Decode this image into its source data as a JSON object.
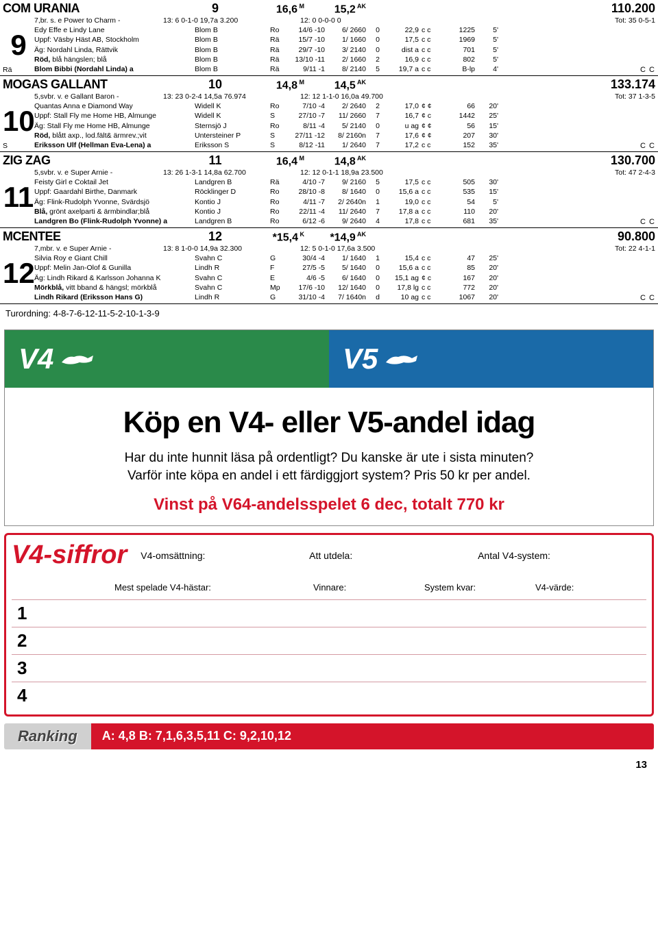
{
  "horses": [
    {
      "name": "COM URANIA",
      "num": "9",
      "stat1": "16,6",
      "sup1": "M",
      "stat2": "15,2",
      "sup2": "AK",
      "record": "110.200",
      "prefix": "Rä",
      "lines": [
        {
          "c1": "7,br. s. e Power to Charm -",
          "c1b": "13:  6  0-1-0  19,7a  3.200",
          "tot": "12:  0  0-0-0   0",
          "totr": "Tot:  35  0-5-1"
        },
        {
          "c1": "Edy Effe e Lindy Lane",
          "c2": "Blom B",
          "c3": "Ro",
          "c4": "14/6 -10",
          "c5": "6/ 2660",
          "c6": "0",
          "c7": "22,9",
          "c8": "c c",
          "c9": "1225",
          "c10": "5'"
        },
        {
          "c1": "Uppf: Väsby Häst AB, Stockholm",
          "c2": "Blom B",
          "c3": "Rä",
          "c4": "15/7 -10",
          "c5": "1/ 1660",
          "c6": "0",
          "c7": "17,5",
          "c8": "c c",
          "c9": "1969",
          "c10": "5'"
        },
        {
          "c1": "Äg: Nordahl Linda, Rättvik",
          "c2": "Blom B",
          "c3": "Rä",
          "c4": "29/7 -10",
          "c5": "3/ 2140",
          "c6": "0",
          "c7": "dist a",
          "c8": "c c",
          "c9": "701",
          "c10": "5'"
        },
        {
          "c1": "Röd, blå hängslen; blå",
          "bold1": "Röd,",
          "c2": "Blom B",
          "c3": "Rä",
          "c4": "13/10 -11",
          "c5": "2/ 1660",
          "c6": "2",
          "c7": "16,9",
          "c8": "c c",
          "c9": "802",
          "c10": "5'"
        },
        {
          "c1": "Blom Bibbi (Nordahl Linda) a",
          "bold": true,
          "c2": "Blom B",
          "c3": "Rä",
          "c4": "9/11 -1",
          "c5": "8/ 2140",
          "c6": "5",
          "c7": "19,7 a",
          "c8": "c c",
          "c9": "B-lp",
          "c10": "4'"
        }
      ],
      "cc": "C C"
    },
    {
      "name": "MOGAS GALLANT",
      "num": "10",
      "stat1": "14,8",
      "sup1": "M",
      "stat2": "14,5",
      "sup2": "AK",
      "record": "133.174",
      "prefix": "S",
      "lines": [
        {
          "c1": "5,svbr. v. e Gallant Baron -",
          "c1b": "13:  23  0-2-4  14,5a  76.974",
          "tot": "12:  12  1-1-0  16,0a  49.700",
          "totr": "Tot:  37  1-3-5"
        },
        {
          "c1": "Quantas Anna e Diamond Way",
          "c2": "Widell K",
          "c3": "Ro",
          "c4": "7/10 -4",
          "c5": "2/ 2640",
          "c6": "2",
          "c7": "17,0",
          "c8": "¢ ¢",
          "c9": "66",
          "c10": "20'"
        },
        {
          "c1": "Uppf: Stall Fly me Home HB, Almunge",
          "c2": "Widell K",
          "c3": "S",
          "c4": "27/10 -7",
          "c5": "11/ 2660",
          "c6": "7",
          "c7": "16,7",
          "c8": "¢ c",
          "c9": "1442",
          "c10": "25'"
        },
        {
          "c1": "Äg: Stall Fly me Home HB, Almunge",
          "c2": "Sternsjö J",
          "c3": "Ro",
          "c4": "8/11 -4",
          "c5": "5/ 2140",
          "c6": "0",
          "c7": "u ag",
          "c8": "¢ ¢",
          "c9": "56",
          "c10": "15'"
        },
        {
          "c1": "Röd, blått axp., lod.fält& ärmrev.;vit",
          "bold1": "Röd,",
          "c2": "Untersteiner P",
          "c3": "S",
          "c4": "27/11 -12",
          "c5": "8/ 2160n",
          "c6": "7",
          "c7": "17,6",
          "c8": "¢ ¢",
          "c9": "207",
          "c10": "30'"
        },
        {
          "c1": "Eriksson Ulf (Hellman Eva-Lena) a",
          "bold": true,
          "c2": "Eriksson S",
          "c3": "S",
          "c4": "8/12 -11",
          "c5": "1/ 2640",
          "c6": "7",
          "c7": "17,2",
          "c8": "c c",
          "c9": "152",
          "c10": "35'"
        }
      ],
      "cc": "C C"
    },
    {
      "name": "ZIG ZAG",
      "num": "11",
      "stat1": "16,4",
      "sup1": "M",
      "stat2": "14,8",
      "sup2": "AK",
      "record": "130.700",
      "prefix": "",
      "lines": [
        {
          "c1": "5,svbr. v. e Super Arnie -",
          "c1b": "13:  26  1-3-1  14,8a  62.700",
          "tot": "12:  12  0-1-1  18,9a  23.500",
          "totr": "Tot:  47  2-4-3"
        },
        {
          "c1": "Feisty Girl e Coktail Jet",
          "c2": "Landgren B",
          "c3": "Rä",
          "c4": "4/10 -7",
          "c5": "9/ 2160",
          "c6": "5",
          "c7": "17,5",
          "c8": "c c",
          "c9": "505",
          "c10": "30'"
        },
        {
          "c1": "Uppf: Gaardahl Birthe, Danmark",
          "c2": "Röcklinger D",
          "c3": "Ro",
          "c4": "28/10 -8",
          "c5": "8/ 1640",
          "c6": "0",
          "c7": "15,6 a",
          "c8": "c c",
          "c9": "535",
          "c10": "15'"
        },
        {
          "c1": "Äg: Flink-Rudolph Yvonne, Svärdsjö",
          "c2": "Kontio J",
          "c3": "Ro",
          "c4": "4/11 -7",
          "c5": "2/ 2640n",
          "c6": "1",
          "c7": "19,0",
          "c8": "c c",
          "c9": "54",
          "c10": "5'"
        },
        {
          "c1": "Blå, grönt axelparti & ärmbindlar;blå",
          "bold1": "Blå,",
          "c2": "Kontio J",
          "c3": "Ro",
          "c4": "22/11 -4",
          "c5": "11/ 2640",
          "c6": "7",
          "c7": "17,8 a",
          "c8": "c c",
          "c9": "110",
          "c10": "20'"
        },
        {
          "c1": "Landgren Bo (Flink-Rudolph Yvonne) a",
          "bold": true,
          "c2": "Landgren B",
          "c3": "Ro",
          "c4": "6/12 -6",
          "c5": "9/ 2640",
          "c6": "4",
          "c7": "17,8",
          "c8": "c c",
          "c9": "681",
          "c10": "35'"
        }
      ],
      "cc": "C C"
    },
    {
      "name": "MCENTEE",
      "num": "12",
      "stat1": "*15,4",
      "sup1": "K",
      "stat2": "*14,9",
      "sup2": "AK",
      "record": "90.800",
      "prefix": "",
      "lines": [
        {
          "c1": "7,mbr. v. e Super Arnie -",
          "c1b": "13:  8  1-0-0  14,9a  32.300",
          "tot": "12:  5  0-1-0  17,6a  3.500",
          "totr": "Tot:  22  4-1-1"
        },
        {
          "c1": "Silvia Roy e Giant Chill",
          "c2": "Svahn C",
          "c3": "G",
          "c4": "30/4 -4",
          "c5": "1/ 1640",
          "c6": "1",
          "c7": "15,4",
          "c8": "c c",
          "c9": "47",
          "c10": "25'"
        },
        {
          "c1": "Uppf: Melin Jan-Olof & Gunilla",
          "c2": "Lindh R",
          "c3": "F",
          "c4": "27/5 -5",
          "c5": "5/ 1640",
          "c6": "0",
          "c7": "15,6 a",
          "c8": "c c",
          "c9": "85",
          "c10": "20'"
        },
        {
          "c1": "Äg: Lindh Rikard & Karlsson Johanna K",
          "c2": "Svahn C",
          "c3": "E",
          "c4": "4/6 -5",
          "c5": "6/ 1640",
          "c6": "0",
          "c7": "15,1 ag",
          "c8": "¢ c",
          "c9": "167",
          "c10": "20'"
        },
        {
          "c1": "Mörkblå, vitt bband & hängsl; mörkblå",
          "bold1": "Mörkblå,",
          "c2": "Svahn C",
          "c3": "Mp",
          "c4": "17/6 -10",
          "c5": "12/ 1640",
          "c6": "0",
          "c7": "17,8 lg",
          "c8": "c c",
          "c9": "772",
          "c10": "20'"
        },
        {
          "c1": "Lindh Rikard (Eriksson Hans G)",
          "bold": true,
          "c2": "Lindh R",
          "c3": "G",
          "c4": "31/10 -4",
          "c5": "7/ 1640n",
          "c6": "d",
          "c7": "10 ag",
          "c8": "c c",
          "c9": "1067",
          "c10": "20'"
        }
      ],
      "cc": "C C"
    }
  ],
  "turordning": "Turordning: 4-8-7-6-12-11-5-2-10-1-3-9",
  "ad": {
    "v4": "V4",
    "v5": "V5",
    "headline": "Köp en V4- eller V5-andel idag",
    "sub1": "Har du inte hunnit läsa på ordentligt? Du kanske är ute i sista minuten?",
    "sub2": "Varför inte köpa en andel i ett färdiggjort system? Pris 50 kr per andel.",
    "red": "Vinst på V64-andelsspelet 6 dec, totalt 770 kr"
  },
  "v4box": {
    "title": "V4-siffror",
    "l1": "V4-omsättning:",
    "l2": "Att utdela:",
    "l3": "Antal V4-system:",
    "m1": "Mest spelade V4-hästar:",
    "m2": "Vinnare:",
    "m3": "System kvar:",
    "m4": "V4-värde:",
    "nums": [
      "1",
      "2",
      "3",
      "4"
    ]
  },
  "ranking": {
    "label": "Ranking",
    "text": "A: 4,8  B: 7,1,6,3,5,11  C: 9,2,10,12"
  },
  "pagenum": "13"
}
